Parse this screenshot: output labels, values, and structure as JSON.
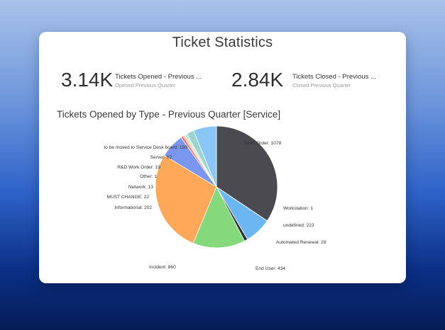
{
  "card": {
    "title": "Ticket Statistics",
    "kpis": [
      {
        "value": "3.14K",
        "label": "Tickets Opened - Previous ...",
        "sub": "Opened Previous Quarter"
      },
      {
        "value": "2.84K",
        "label": "Tickets Closed - Previous ...",
        "sub": "Closed Previous Quarter"
      }
    ],
    "chart_title": "Tickets Opened by Type - Previous Quarter [Service]"
  },
  "chart_data": {
    "type": "pie",
    "title": "Tickets Opened by Type - Previous Quarter [Service]",
    "slices": [
      {
        "label": "Work Order",
        "value": 1078,
        "color": "#4a4a50"
      },
      {
        "label": "Workstation",
        "value": 1,
        "color": "#d9c9a8"
      },
      {
        "label": "undefined",
        "value": 222,
        "color": "#6cb6f2"
      },
      {
        "label": "Automated Renewal",
        "value": 28,
        "color": "#2b2f40"
      },
      {
        "label": "End User",
        "value": 434,
        "color": "#85d97a"
      },
      {
        "label": "Incident",
        "value": 860,
        "color": "#ffa85a"
      },
      {
        "label": "Informational",
        "value": 202,
        "color": "#7a96ee"
      },
      {
        "label": "MUST CHANGE",
        "value": 22,
        "color": "#f47a72"
      },
      {
        "label": "Network",
        "value": 13,
        "color": "#f6b3a0"
      },
      {
        "label": "Other",
        "value": 1,
        "color": "#e0e0e0"
      },
      {
        "label": "R&D Work Order",
        "value": 19,
        "color": "#c9e6d4"
      },
      {
        "label": "Server",
        "value": 62,
        "color": "#9ad4cf"
      },
      {
        "label": "to be moved to Service Desk board",
        "value": 193,
        "color": "#8bc6f8"
      }
    ]
  }
}
